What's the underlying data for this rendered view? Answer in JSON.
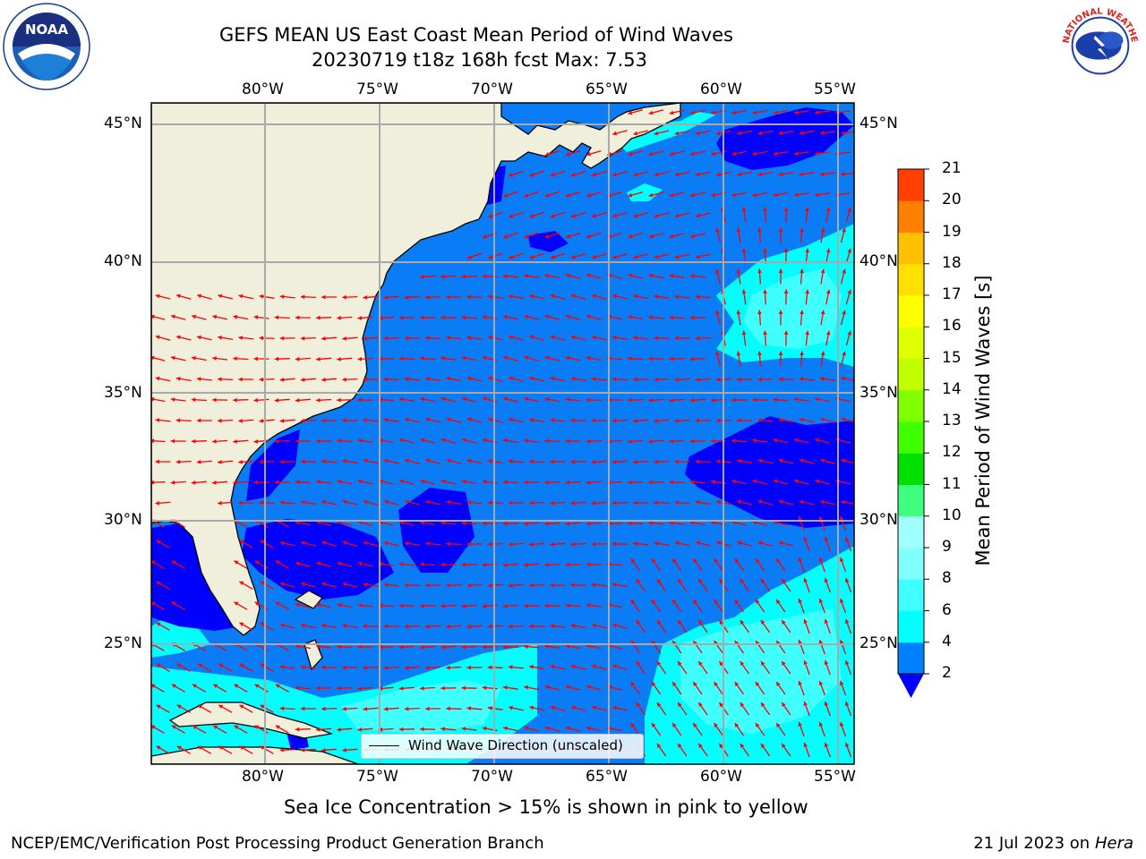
{
  "title_line1": "GEFS MEAN US East Coast Mean Period of Wind Waves",
  "title_line2": "20230719 t18z 168h fcst   Max: 7.53",
  "subtitle": "Sea Ice Concentration > 15% is shown in pink to yellow",
  "footer_left": "NCEP/EMC/Verification Post Processing Product Generation Branch",
  "footer_date": "21 Jul 2023 on ",
  "footer_machine": "Hera",
  "legend_label": "Wind Wave Direction (unscaled)",
  "colorbar": {
    "label": "Mean Period of Wind Waves [s]",
    "ticks": [
      "2",
      "4",
      "6",
      "8",
      "9",
      "10",
      "11",
      "12",
      "13",
      "14",
      "15",
      "16",
      "17",
      "18",
      "19",
      "20",
      "21"
    ],
    "colors": [
      "#0080ff",
      "#00ffff",
      "#40ffff",
      "#80ffff",
      "#a0ffff",
      "#40ff80",
      "#00e000",
      "#40ff00",
      "#80ff00",
      "#c0ff00",
      "#e0ff00",
      "#ffff00",
      "#ffe000",
      "#ffc000",
      "#ff8000",
      "#ff4000",
      "#ff0000"
    ],
    "extend_color": "#0000ff"
  },
  "axes": {
    "lon_labels": [
      "80°W",
      "75°W",
      "70°W",
      "65°W",
      "60°W",
      "55°W"
    ],
    "lat_labels": [
      "45°N",
      "40°N",
      "35°N",
      "30°N",
      "25°N"
    ]
  },
  "colors": {
    "land": "#efefdc",
    "ocean_main": "#0a7cf5",
    "ocean_low": "#0000ff",
    "ocean_high": "#00ffff",
    "arrow": "#ff0000",
    "grid": "#a9a9a9"
  },
  "logos": {
    "noaa_text": "NOAA",
    "nws_text": "NATIONAL WEATHER SERVICE"
  }
}
